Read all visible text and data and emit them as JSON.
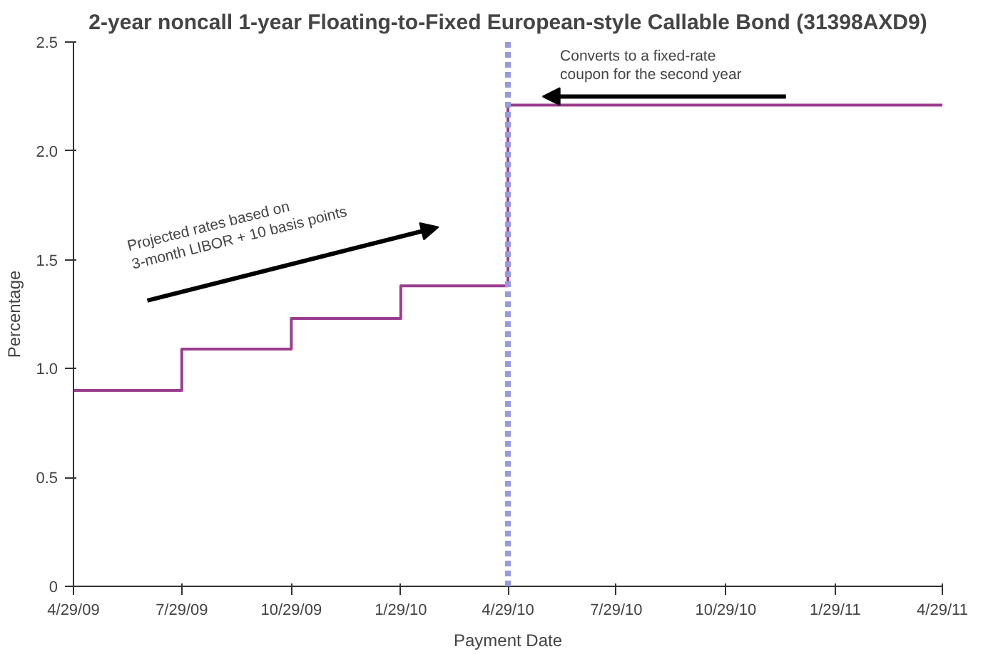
{
  "chart_data": {
    "type": "step",
    "title": "2-year noncall 1-year Floating-to-Fixed European-style Callable Bond (31398AXD9)",
    "xlabel": "Payment Date",
    "ylabel": "Percentage",
    "x": [
      "2009-04-29",
      "2009-07-29",
      "2009-10-29",
      "2010-01-29",
      "2010-04-29",
      "2011-04-29"
    ],
    "series": [
      {
        "color": "#9b3d8f",
        "values": [
          0.9,
          1.09,
          1.23,
          1.38,
          2.21,
          2.21
        ]
      }
    ],
    "xlim": [
      "2009-04-29",
      "2011-04-29"
    ],
    "xticks": [
      {
        "value": "2009-04-29",
        "label": "4/29/09"
      },
      {
        "value": "2009-07-29",
        "label": "7/29/09"
      },
      {
        "value": "2009-10-29",
        "label": "10/29/09"
      },
      {
        "value": "2010-01-29",
        "label": "1/29/10"
      },
      {
        "value": "2010-04-29",
        "label": "4/29/10"
      },
      {
        "value": "2010-07-29",
        "label": "7/29/10"
      },
      {
        "value": "2010-10-29",
        "label": "10/29/10"
      },
      {
        "value": "2011-01-29",
        "label": "1/29/11"
      },
      {
        "value": "2011-04-29",
        "label": "4/29/11"
      }
    ],
    "ylim": [
      0,
      2.5
    ],
    "yticks": [
      0,
      {
        "value": 0.5,
        "label": "0.5"
      },
      {
        "value": 1,
        "label": "1.0"
      },
      {
        "value": 1.5,
        "label": "1.5"
      },
      {
        "value": 2,
        "label": "2.0"
      },
      {
        "value": 2.5,
        "label": "2.5"
      }
    ],
    "ref_lines": [
      {
        "axis": "x",
        "value": "2010-04-29",
        "color": "#9999dd",
        "line_style": "dashed"
      }
    ],
    "annotations": [
      "Converts to a fixed-rate\ncoupon for the second year",
      "Projected rates based on\n3-month LIBOR + 10 basis points"
    ]
  }
}
